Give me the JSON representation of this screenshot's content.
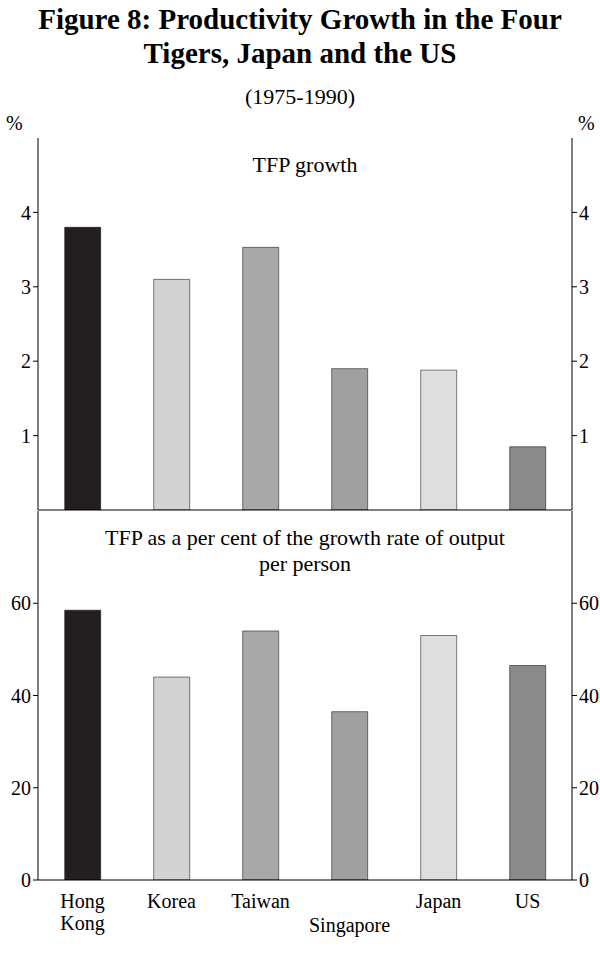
{
  "title": "Figure 8: Productivity Growth in the Four Tigers, Japan and the US",
  "subtitle": "(1975-1990)",
  "chart_data": [
    {
      "type": "bar",
      "title": "TFP growth",
      "ylabel": "%",
      "categories": [
        "Hong Kong",
        "Korea",
        "Taiwan",
        "Singapore",
        "Japan",
        "US"
      ],
      "values": [
        3.8,
        3.1,
        3.53,
        1.9,
        1.88,
        0.85
      ],
      "colors": [
        "#231f20",
        "#d3d3d3",
        "#a8a8a8",
        "#a0a0a0",
        "#dedede",
        "#8a8a8a"
      ],
      "ylim": [
        0,
        5
      ],
      "yticks": [
        0,
        1,
        2,
        3,
        4
      ],
      "grid": false,
      "tick_labels": "y"
    },
    {
      "type": "bar",
      "title": "TFP as a per cent of the growth rate of output per person",
      "categories": [
        "Hong Kong",
        "Korea",
        "Taiwan",
        "Singapore",
        "Japan",
        "US"
      ],
      "values": [
        58.5,
        44,
        54,
        36.5,
        53,
        46.5
      ],
      "colors": [
        "#231f20",
        "#d3d3d3",
        "#a8a8a8",
        "#a0a0a0",
        "#dedede",
        "#8a8a8a"
      ],
      "ylim": [
        0,
        80
      ],
      "yticks": [
        0,
        20,
        40,
        60
      ],
      "grid": false
    }
  ]
}
